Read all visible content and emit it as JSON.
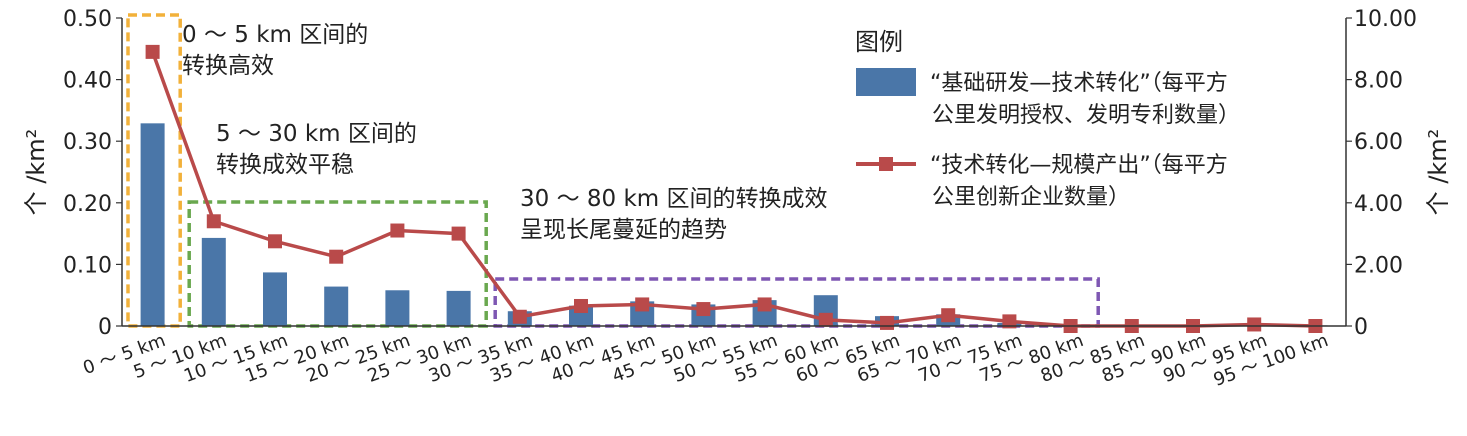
{
  "chart_data": {
    "type": "bar+line",
    "categories": [
      "0 ～ 5 km",
      "5 ～ 10 km",
      "10 ～ 15 km",
      "15 ～ 20 km",
      "20 ～ 25 km",
      "25 ～ 30 km",
      "30 ～ 35 km",
      "35 ～ 40 km",
      "40 ～ 45 km",
      "45 ～ 50 km",
      "50 ～ 55 km",
      "55 ～ 60 km",
      "60 ～ 65 km",
      "65 ～ 70 km",
      "70 ～ 75 km",
      "75 ～ 80 km",
      "80 ～ 85 km",
      "85 ～ 90 km",
      "90 ～ 95 km",
      "95 ～ 100 km"
    ],
    "series": [
      {
        "name": "“基础研发—技术转化”（每平方公里发明授权、发明专利数量）",
        "type": "bar",
        "axis": "left",
        "color": "#4a76a8",
        "values": [
          0.329,
          0.143,
          0.087,
          0.064,
          0.058,
          0.057,
          0.024,
          0.033,
          0.04,
          0.035,
          0.042,
          0.05,
          0.016,
          0.019,
          0.005,
          0.002,
          0.001,
          0.001,
          0.001,
          0.001
        ]
      },
      {
        "name": "“技术转化—规模产出”（每平方公里创新企业数量）",
        "type": "line",
        "axis": "right",
        "color": "#b94a4a",
        "values": [
          8.9,
          3.4,
          2.75,
          2.25,
          3.1,
          3.0,
          0.3,
          0.65,
          0.7,
          0.55,
          0.7,
          0.2,
          0.1,
          0.35,
          0.15,
          0.0,
          0.0,
          0.0,
          0.05,
          0.0
        ]
      }
    ],
    "y_left": {
      "label": "个 /km²",
      "ticks": [
        "0",
        "0.10",
        "0.20",
        "0.30",
        "0.40",
        "0.50"
      ],
      "ylim": [
        0,
        0.5
      ]
    },
    "y_right": {
      "label": "个 /km²",
      "ticks": [
        "0",
        "2.00",
        "4.00",
        "6.00",
        "8.00",
        "10.00"
      ],
      "ylim": [
        0,
        10
      ]
    },
    "legend": {
      "title": "图例",
      "position": "top-right",
      "items": [
        {
          "lines": [
            "“基础研发—技术转化”（每平方",
            "公里发明授权、发明专利数量）"
          ]
        },
        {
          "lines": [
            "“技术转化—规模产出”（每平方",
            "公里创新企业数量）"
          ]
        }
      ]
    },
    "annotations": [
      {
        "color": "#f2b13a",
        "from": 0,
        "to": 0,
        "lines": [
          "0 ～ 5 km 区间的",
          "转换高效"
        ]
      },
      {
        "color": "#6aa84f",
        "from": 1,
        "to": 5,
        "lines": [
          "5 ～ 30 km 区间的",
          "转换成效平稳"
        ]
      },
      {
        "color": "#7e57b3",
        "from": 6,
        "to": 15,
        "lines": [
          "30 ～ 80 km 区间的转换成效",
          "呈现长尾蔓延的趋势"
        ]
      }
    ]
  }
}
